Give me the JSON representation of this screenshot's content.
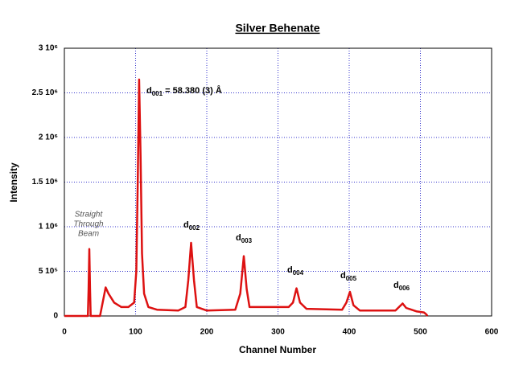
{
  "chart_data": {
    "type": "line",
    "title": "Silver Behenate",
    "x_label": "Channel Number",
    "y_label": "Intensity",
    "x": [
      0,
      30,
      33,
      34,
      35,
      36,
      37,
      50,
      55,
      58,
      62,
      70,
      80,
      90,
      98,
      101,
      103,
      105,
      107,
      109,
      112,
      118,
      130,
      160,
      170,
      174,
      178,
      182,
      186,
      200,
      240,
      247,
      252,
      256,
      260,
      290,
      315,
      321,
      326,
      331,
      340,
      390,
      396,
      401,
      406,
      415,
      465,
      470,
      475,
      480,
      495,
      505,
      508,
      510
    ],
    "series": [
      {
        "name": "Intensity",
        "color": "#dd1111",
        "values": [
          0,
          0,
          0,
          300000,
          750000,
          300000,
          0,
          0,
          200000,
          320000,
          250000,
          150000,
          100000,
          100000,
          150000,
          500000,
          1500000,
          2650000,
          1800000,
          700000,
          250000,
          100000,
          70000,
          60000,
          100000,
          400000,
          820000,
          400000,
          100000,
          60000,
          70000,
          250000,
          670000,
          300000,
          100000,
          100000,
          100000,
          150000,
          310000,
          150000,
          80000,
          70000,
          150000,
          270000,
          120000,
          60000,
          60000,
          100000,
          140000,
          90000,
          50000,
          40000,
          20000,
          0
        ]
      }
    ],
    "xlim": [
      0,
      600
    ],
    "xticks": [
      0,
      100,
      200,
      300,
      400,
      500,
      600
    ],
    "ylim": [
      0,
      3000000
    ],
    "yticks": [
      0,
      {
        "value": 500000,
        "label": "5 10⁵"
      },
      {
        "value": 1000000,
        "label": "1 10⁶"
      },
      {
        "value": 1500000,
        "label": "1.5 10⁶"
      },
      {
        "value": 2000000,
        "label": "2 10⁶"
      },
      {
        "value": 2500000,
        "label": "2.5 10⁶"
      },
      {
        "value": 3000000,
        "label": "3 10⁶"
      }
    ],
    "grid": true,
    "annotations": [
      {
        "text": "d",
        "sub": "001",
        "rest": " = 58.380 (3) Å"
      },
      {
        "text": "d",
        "sub": "002"
      },
      {
        "text": "d",
        "sub": "003"
      },
      {
        "text": "d",
        "sub": "004"
      },
      {
        "text": "d",
        "sub": "005"
      },
      {
        "text": "d",
        "sub": "006"
      }
    ],
    "beam_note": [
      "Straight",
      "Through",
      "Beam"
    ]
  }
}
